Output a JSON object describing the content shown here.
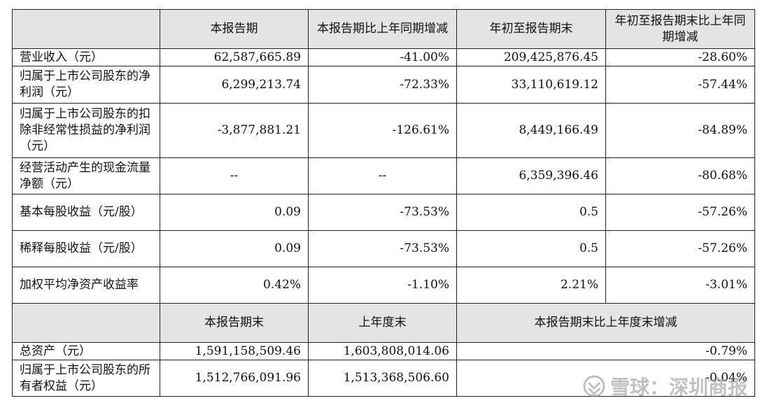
{
  "table": {
    "header1": [
      "本报告期",
      "本报告期比上年同期增减",
      "年初至报告期末",
      "年初至报告期末比上年同期增减"
    ],
    "rows1": [
      {
        "label": "营业收入（元）",
        "c1": "62,587,665.89",
        "c2": "-41.00%",
        "c3": "209,425,876.45",
        "c4": "-28.60%"
      },
      {
        "label": "归属于上市公司股东的净利润（元）",
        "c1": "6,299,213.74",
        "c2": "-72.33%",
        "c3": "33,110,619.12",
        "c4": "-57.44%"
      },
      {
        "label": "归属于上市公司股东的扣除非经常性损益的净利润（元）",
        "c1": "-3,877,881.21",
        "c2": "-126.61%",
        "c3": "8,449,166.49",
        "c4": "-84.89%"
      },
      {
        "label": "经营活动产生的现金流量净额（元）",
        "c1": "--",
        "c2": "--",
        "c3": "6,359,396.46",
        "c4": "-80.68%"
      },
      {
        "label": "基本每股收益（元/股）",
        "c1": "0.09",
        "c2": "-73.53%",
        "c3": "0.5",
        "c4": "-57.26%"
      },
      {
        "label": "稀释每股收益（元/股）",
        "c1": "0.09",
        "c2": "-73.53%",
        "c3": "0.5",
        "c4": "-57.26%"
      },
      {
        "label": "加权平均净资产收益率",
        "c1": "0.42%",
        "c2": "-1.10%",
        "c3": "2.21%",
        "c4": "-3.01%"
      }
    ],
    "header2": [
      "本报告期末",
      "上年度末",
      "本报告期末比上年度末增减"
    ],
    "rows2": [
      {
        "label": "总资产（元）",
        "c1": "1,591,158,509.46",
        "c2": "1,603,808,014.06",
        "c3": "-0.79%"
      },
      {
        "label": "归属于上市公司股东的所有者权益（元）",
        "c1": "1,512,766,091.96",
        "c2": "1,513,368,506.60",
        "c3": "-0.04%"
      }
    ]
  },
  "watermark": {
    "text": "雪球：深圳商报",
    "icon": "snowball-logo-icon"
  }
}
